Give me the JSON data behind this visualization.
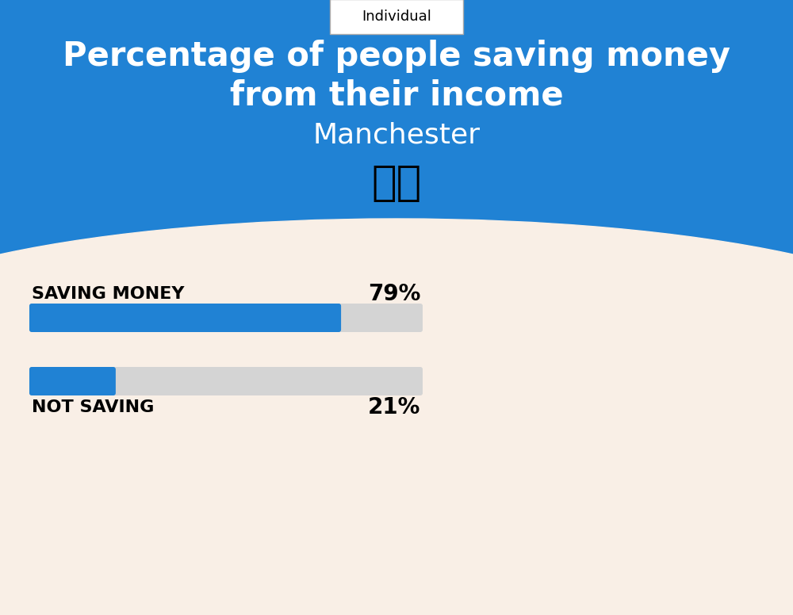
{
  "title_line1": "Percentage of people saving money",
  "title_line2": "from their income",
  "subtitle": "Manchester",
  "tab_label": "Individual",
  "bg_color": "#f9efe6",
  "blue_color": "#2082d4",
  "bar_bg_color": "#d4d4d4",
  "bar_categories": [
    "SAVING MONEY",
    "NOT SAVING"
  ],
  "bar_values": [
    79,
    21
  ],
  "bar_labels": [
    "79%",
    "21%"
  ],
  "title_color": "#ffffff",
  "subtitle_color": "#ffffff",
  "tab_border_color": "#aaaaaa",
  "title_fontsize": 30,
  "subtitle_fontsize": 26,
  "bar_label_fontsize": 20,
  "bar_category_fontsize": 16,
  "tab_fontsize": 13
}
